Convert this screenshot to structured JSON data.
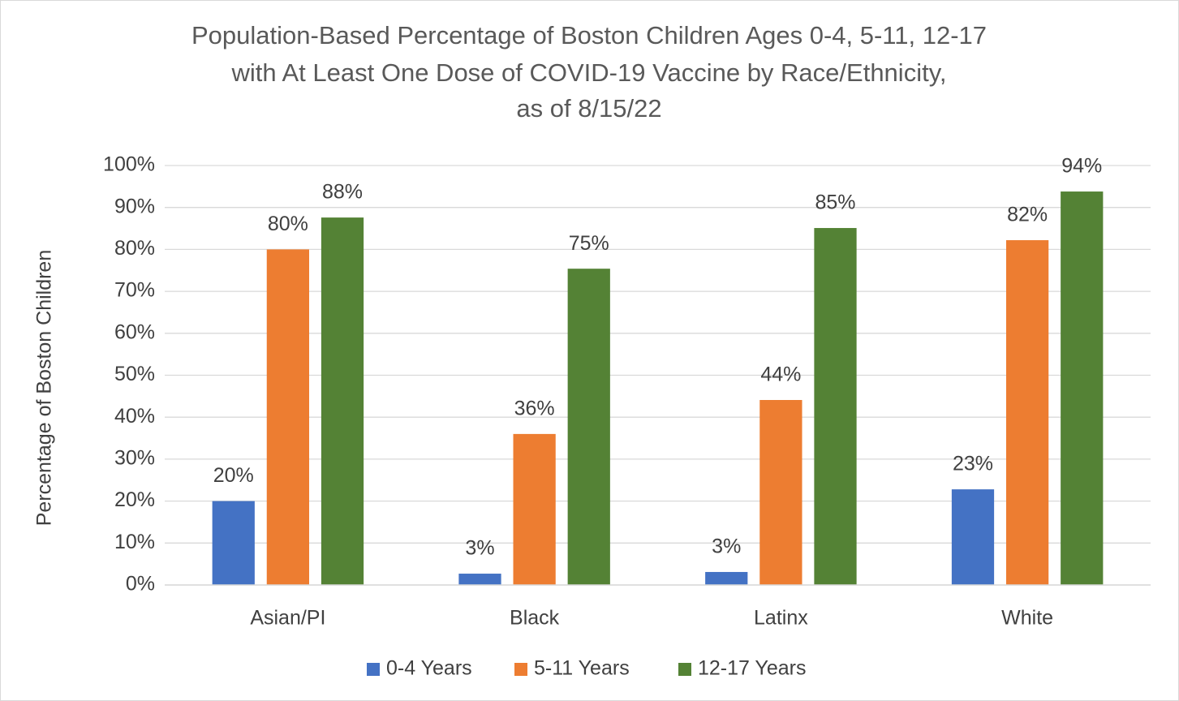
{
  "chart_data": {
    "type": "bar",
    "title": [
      "Population-Based Percentage of Boston Children Ages 0-4, 5-11, 12-17",
      "with At Least One Dose of COVID-19 Vaccine by Race/Ethnicity,",
      "as of 8/15/22"
    ],
    "y_label": "Percentage of Boston Children",
    "categories": [
      "Asian/PI",
      "Black",
      "Latinx",
      "White"
    ],
    "series": [
      {
        "name": "0-4 Years",
        "color": "#4472c4",
        "values": [
          20,
          2.7,
          3.1,
          22.8
        ],
        "value_labels": [
          "20%",
          "3%",
          "3%",
          "23%"
        ]
      },
      {
        "name": "5-11 Years",
        "color": "#ed7d31",
        "values": [
          80,
          36,
          44.1,
          82.2
        ],
        "value_labels": [
          "80%",
          "36%",
          "44%",
          "82%"
        ]
      },
      {
        "name": "12-17 Years",
        "color": "#548235",
        "values": [
          87.6,
          75.4,
          85.1,
          93.8
        ],
        "value_labels": [
          "88%",
          "75%",
          "85%",
          "94%"
        ]
      }
    ],
    "ylim": [
      0,
      100
    ],
    "yticks": [
      {
        "value": 0,
        "label": "0%"
      },
      {
        "value": 10,
        "label": "10%"
      },
      {
        "value": 20,
        "label": "20%"
      },
      {
        "value": 30,
        "label": "30%"
      },
      {
        "value": 40,
        "label": "40%"
      },
      {
        "value": 50,
        "label": "50%"
      },
      {
        "value": 60,
        "label": "60%"
      },
      {
        "value": 70,
        "label": "70%"
      },
      {
        "value": 80,
        "label": "80%"
      },
      {
        "value": 90,
        "label": "90%"
      },
      {
        "value": 100,
        "label": "100%"
      }
    ],
    "grid": true,
    "legend": "bottom"
  }
}
